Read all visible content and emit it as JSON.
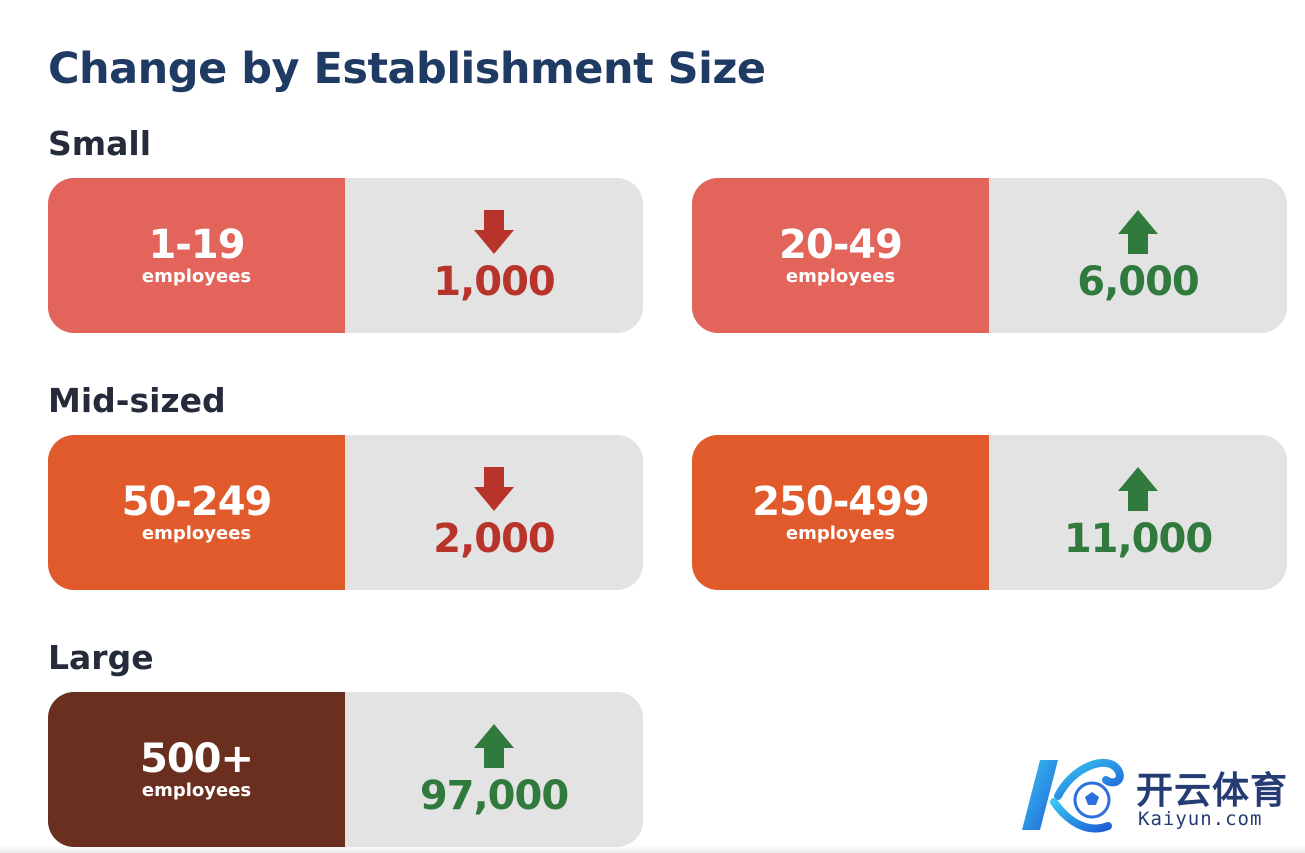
{
  "title": "Change by Establishment Size",
  "groups": [
    {
      "label": "Small",
      "cards": [
        {
          "range": "1-19",
          "unit": "employees",
          "value": "1,000",
          "direction": "down"
        },
        {
          "range": "20-49",
          "unit": "employees",
          "value": "6,000",
          "direction": "up"
        }
      ]
    },
    {
      "label": "Mid-sized",
      "cards": [
        {
          "range": "50-249",
          "unit": "employees",
          "value": "2,000",
          "direction": "down"
        },
        {
          "range": "250-499",
          "unit": "employees",
          "value": "11,000",
          "direction": "up"
        }
      ]
    },
    {
      "label": "Large",
      "cards": [
        {
          "range": "500+",
          "unit": "employees",
          "value": "97,000",
          "direction": "up"
        }
      ]
    }
  ],
  "colors": {
    "small": "#e2645a",
    "mid": "#e05a2b",
    "large": "#6b2f20",
    "down": "#b8332a",
    "up": "#2f7a3c",
    "title": "#1f3a63"
  },
  "icons": {
    "down": "arrow-down-icon",
    "up": "arrow-up-icon"
  },
  "watermark": {
    "brand_cn": "开云体育",
    "brand_url": "Kaiyun.com"
  }
}
